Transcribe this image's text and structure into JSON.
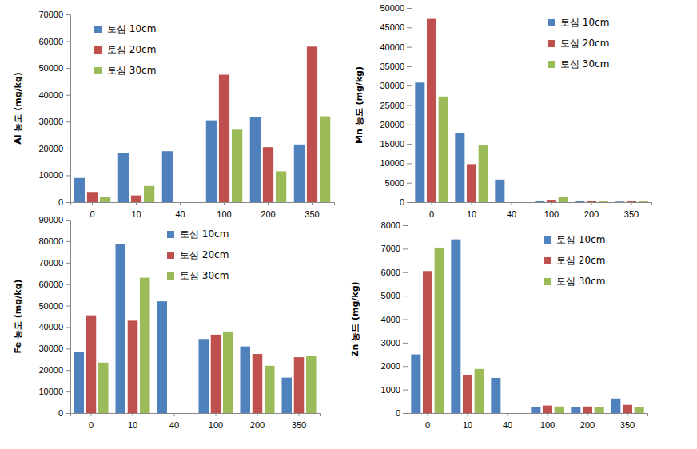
{
  "chart_data": [
    {
      "type": "bar",
      "y_label": "Al 농도 (mg/kg)",
      "categories": [
        "0",
        "10",
        "40",
        "100",
        "200",
        "350"
      ],
      "series": [
        {
          "name": "토심 10cm",
          "color": "#4f81bd",
          "values": [
            9000,
            18200,
            19000,
            30500,
            31800,
            21500
          ]
        },
        {
          "name": "토심 20cm",
          "color": "#c0504d",
          "values": [
            3800,
            2500,
            null,
            47500,
            20500,
            58000
          ]
        },
        {
          "name": "토심 30cm",
          "color": "#9bbb59",
          "values": [
            2000,
            6000,
            null,
            27000,
            11500,
            32000
          ]
        }
      ],
      "ylim": [
        0,
        70000
      ],
      "yticks": [
        0,
        10000,
        20000,
        30000,
        40000,
        50000,
        60000,
        70000
      ],
      "legend": "upper left"
    },
    {
      "type": "bar",
      "y_label": "Mn 농도 (mg/kg)",
      "categories": [
        "0",
        "10",
        "40",
        "100",
        "200",
        "350"
      ],
      "series": [
        {
          "name": "토심 10cm",
          "color": "#4f81bd",
          "values": [
            30800,
            17700,
            5800,
            300,
            200,
            150
          ]
        },
        {
          "name": "토심 20cm",
          "color": "#c0504d",
          "values": [
            47200,
            9800,
            null,
            600,
            400,
            200
          ]
        },
        {
          "name": "토심 30cm",
          "color": "#9bbb59",
          "values": [
            27200,
            14600,
            null,
            1300,
            300,
            200
          ]
        }
      ],
      "ylim": [
        0,
        50000
      ],
      "yticks": [
        0,
        5000,
        10000,
        15000,
        20000,
        25000,
        30000,
        35000,
        40000,
        45000,
        50000
      ],
      "legend": "upper right"
    },
    {
      "type": "bar",
      "y_label": "Fe 농도 (mg/kg)",
      "categories": [
        "0",
        "10",
        "40",
        "100",
        "200",
        "350"
      ],
      "series": [
        {
          "name": "토심 10cm",
          "color": "#4f81bd",
          "values": [
            28500,
            78500,
            52000,
            34500,
            31000,
            16500
          ]
        },
        {
          "name": "토심 20cm",
          "color": "#c0504d",
          "values": [
            45500,
            43000,
            null,
            36500,
            27500,
            26000
          ]
        },
        {
          "name": "토심 30cm",
          "color": "#9bbb59",
          "values": [
            23500,
            63000,
            null,
            38000,
            22000,
            26500
          ]
        }
      ],
      "ylim": [
        0,
        90000
      ],
      "yticks": [
        0,
        10000,
        20000,
        30000,
        40000,
        50000,
        60000,
        70000,
        80000,
        90000
      ],
      "legend": "upper center"
    },
    {
      "type": "bar",
      "y_label": "Zn 농도 (mg/kg)",
      "categories": [
        "0",
        "10",
        "40",
        "100",
        "200",
        "350"
      ],
      "series": [
        {
          "name": "토심 10cm",
          "color": "#4f81bd",
          "values": [
            2500,
            7400,
            1500,
            250,
            250,
            620
          ]
        },
        {
          "name": "토심 20cm",
          "color": "#c0504d",
          "values": [
            6050,
            1600,
            null,
            320,
            280,
            350
          ]
        },
        {
          "name": "토심 30cm",
          "color": "#9bbb59",
          "values": [
            7050,
            1880,
            null,
            280,
            250,
            250
          ]
        }
      ],
      "ylim": [
        0,
        8000
      ],
      "yticks": [
        0,
        1000,
        2000,
        3000,
        4000,
        5000,
        6000,
        7000,
        8000
      ],
      "legend": "upper right"
    }
  ]
}
